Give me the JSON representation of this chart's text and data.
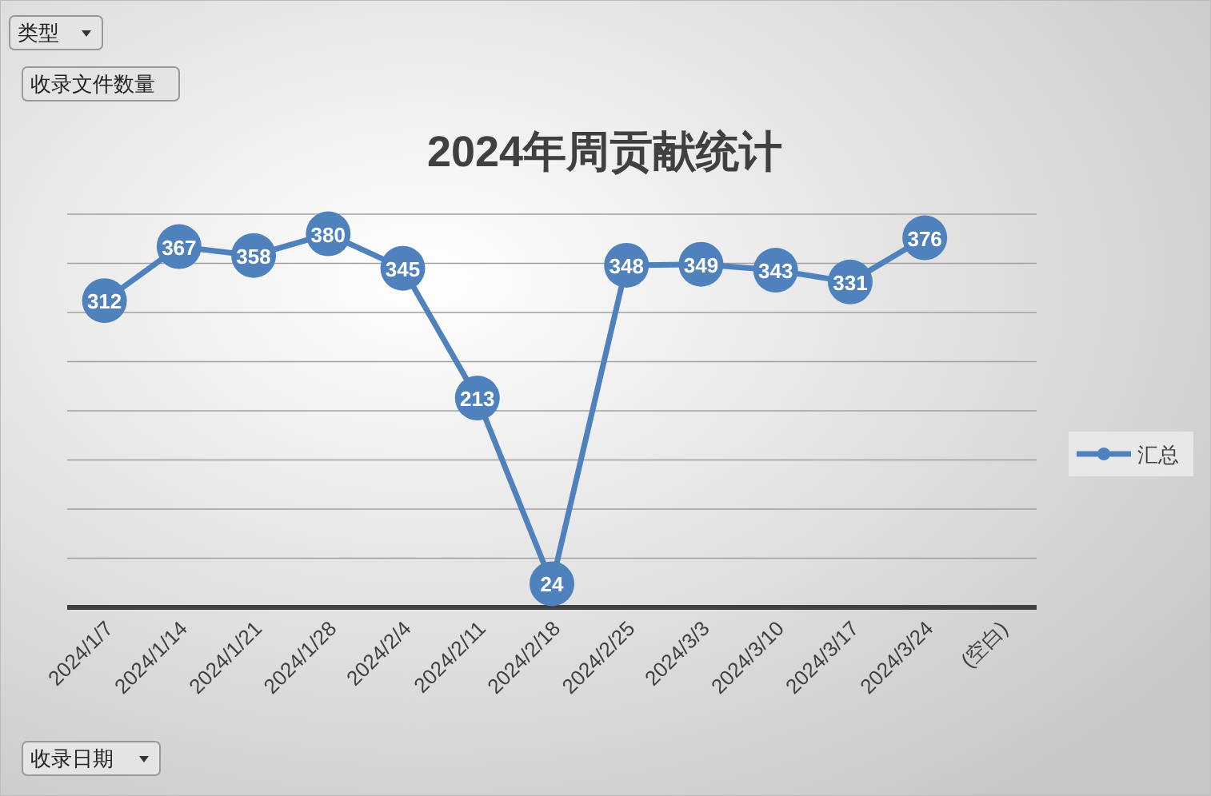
{
  "chart_data": {
    "type": "line",
    "title": "2024年周贡献统计",
    "categories": [
      "2024/1/7",
      "2024/1/14",
      "2024/1/21",
      "2024/1/28",
      "2024/2/4",
      "2024/2/11",
      "2024/2/18",
      "2024/2/25",
      "2024/3/3",
      "2024/3/10",
      "2024/3/17",
      "2024/3/24",
      "(空白)"
    ],
    "series": [
      {
        "name": "汇总",
        "color": "#4f81bd",
        "values": [
          312,
          367,
          358,
          380,
          345,
          213,
          24,
          348,
          349,
          343,
          331,
          376,
          null
        ]
      }
    ],
    "ylim": [
      0,
      400
    ],
    "yticks": [
      {
        "value": 0,
        "label": null
      },
      {
        "value": 50,
        "label": null
      },
      {
        "value": 100,
        "label": null
      },
      {
        "value": 150,
        "label": null
      },
      {
        "value": 200,
        "label": null
      },
      {
        "value": 250,
        "label": null
      },
      {
        "value": 300,
        "label": null
      },
      {
        "value": 350,
        "label": null
      },
      {
        "value": 400,
        "label": null
      }
    ],
    "grid": "y",
    "legend": "right",
    "marker": "circle",
    "line_style": "solid",
    "data_labels": true,
    "tick_labels": "x",
    "annotations": [
      "类型",
      "收录文件数量",
      "收录日期"
    ]
  }
}
